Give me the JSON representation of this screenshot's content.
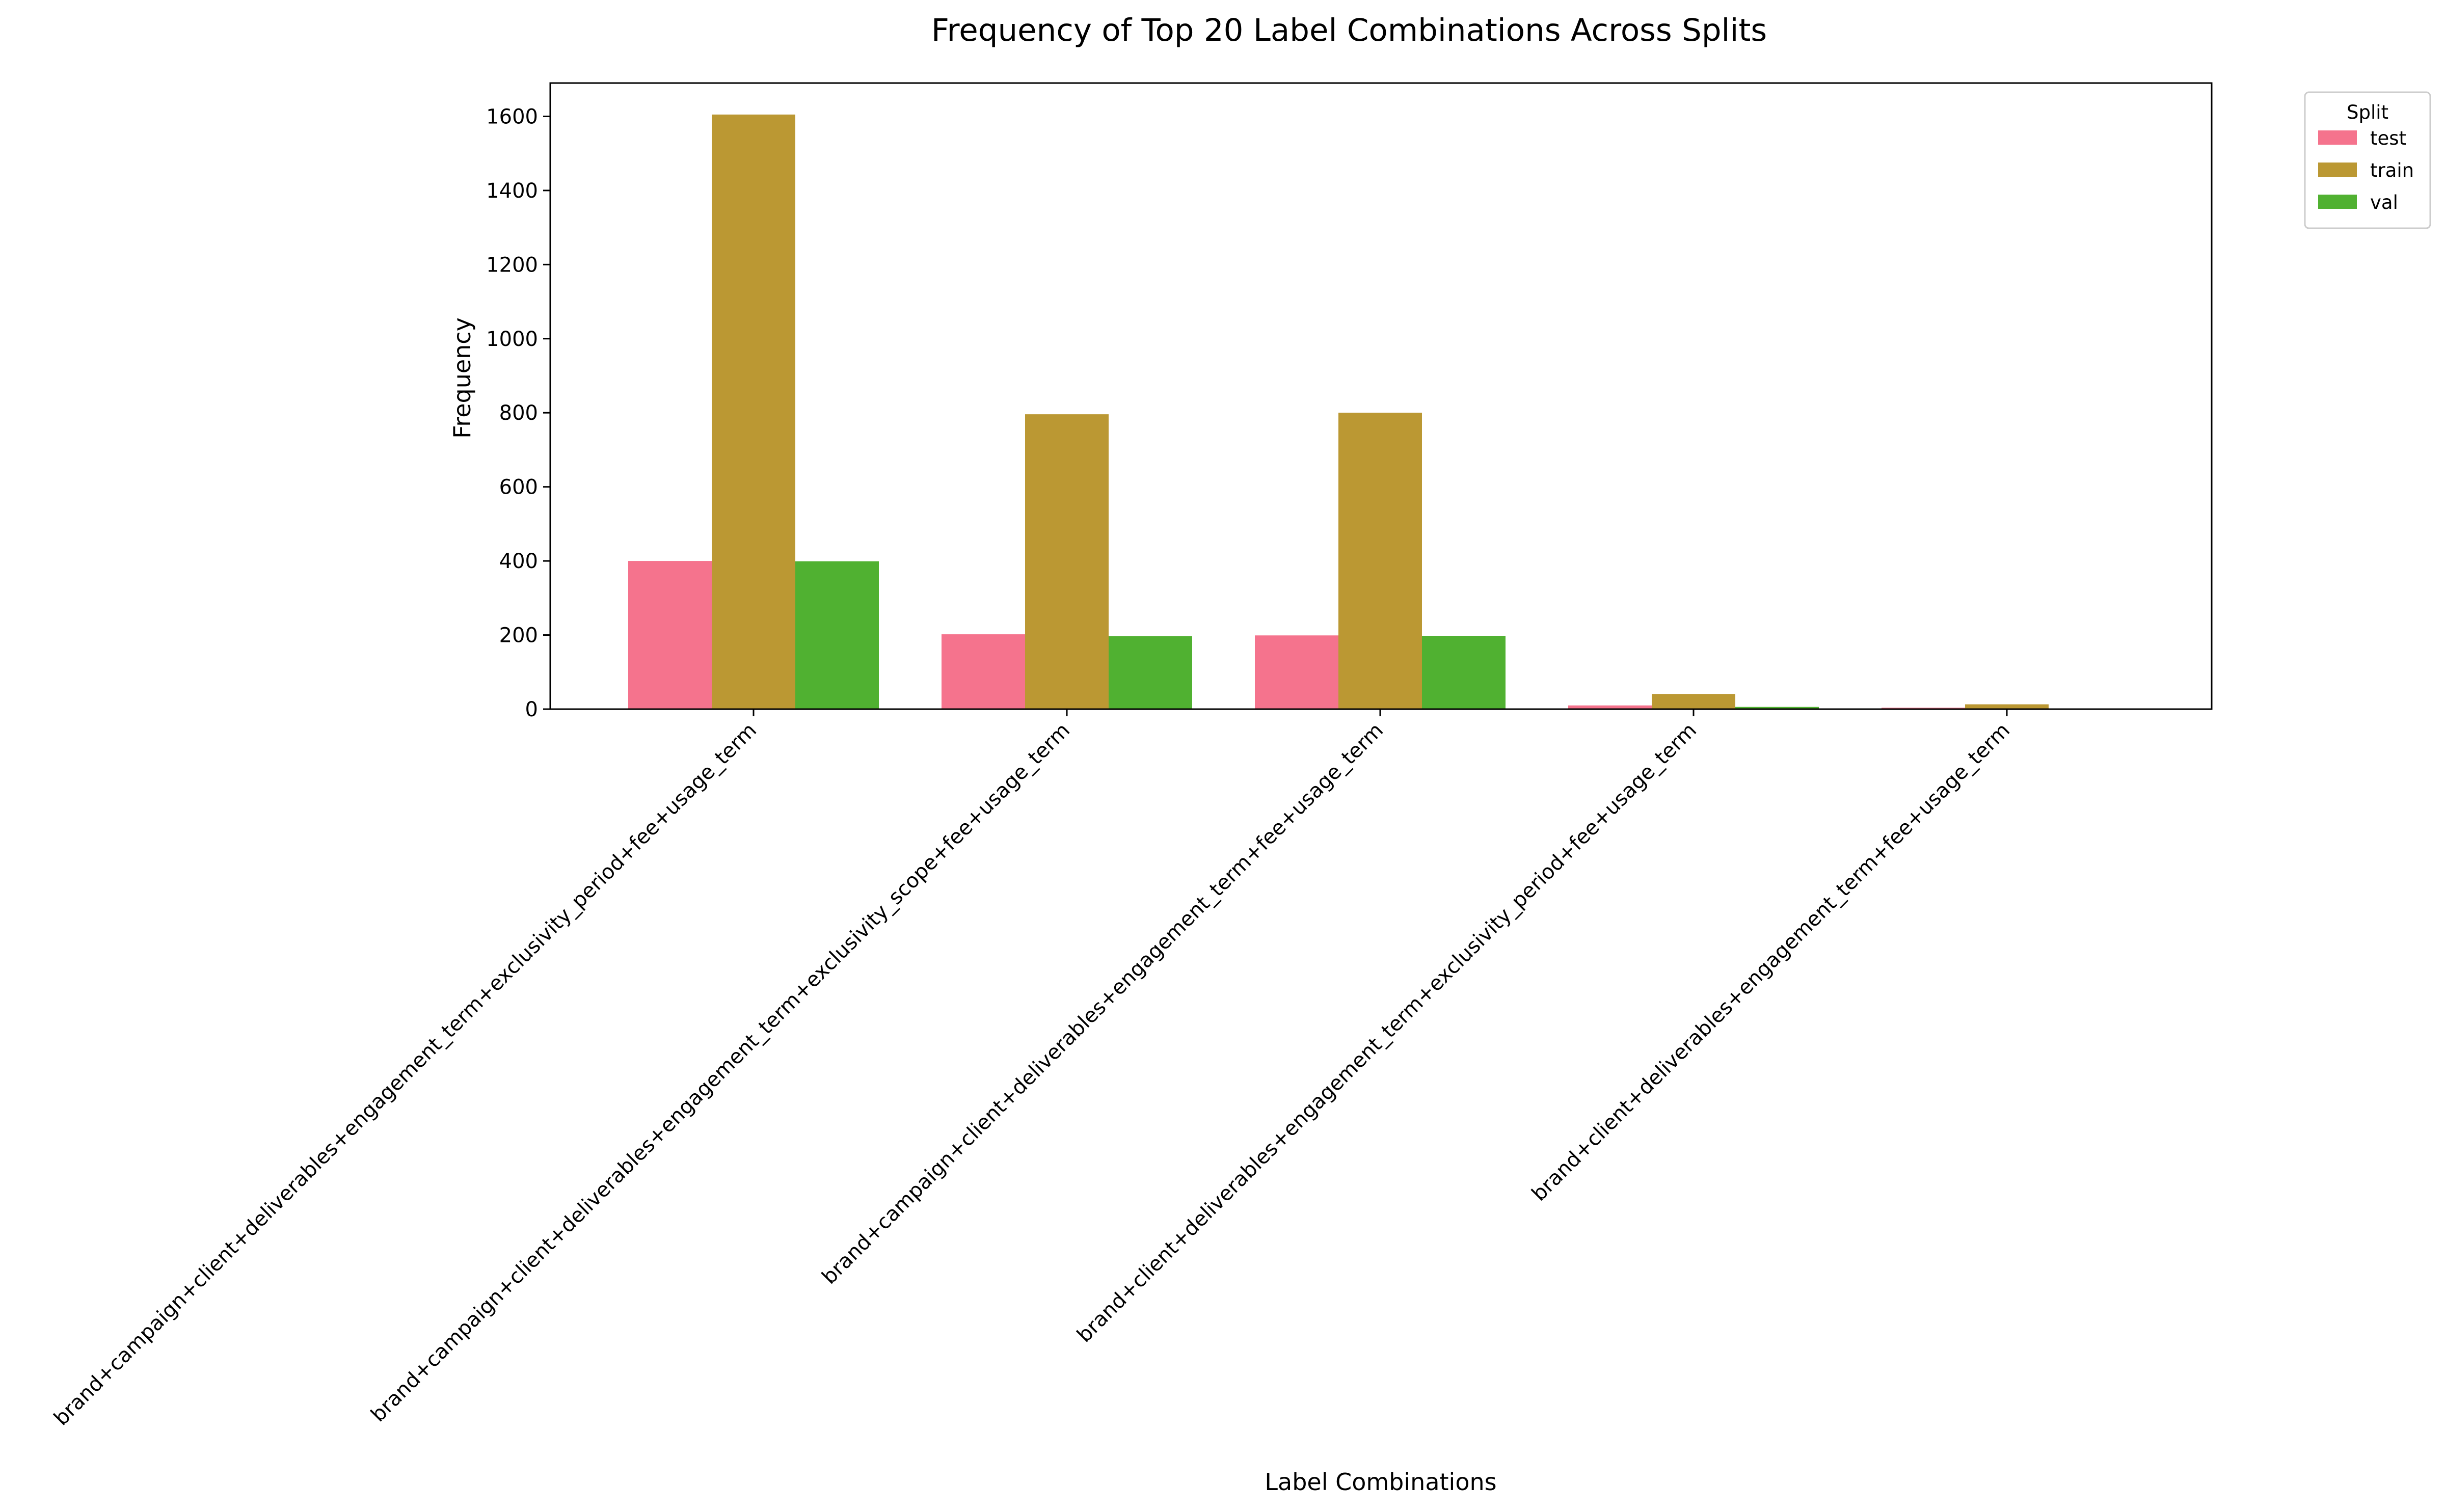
{
  "chart_data": {
    "type": "bar",
    "title": "Frequency of Top 20 Label Combinations Across Splits",
    "xlabel": "Label Combinations",
    "ylabel": "Frequency",
    "ylim": [
      0,
      1690
    ],
    "yticks": [
      0,
      200,
      400,
      600,
      800,
      1000,
      1200,
      1400,
      1600
    ],
    "grid": false,
    "legend": {
      "title": "Split",
      "placement": "outside top-right"
    },
    "categories": [
      "brand+campaign+client+deliverables+engagement_term+exclusivity_period+fee+usage_term",
      "brand+campaign+client+deliverables+engagement_term+exclusivity_scope+fee+usage_term",
      "brand+campaign+client+deliverables+engagement_term+fee+usage_term",
      "brand+client+deliverables+engagement_term+exclusivity_period+fee+usage_term",
      "brand+client+deliverables+engagement_term+fee+usage_term"
    ],
    "series": [
      {
        "name": "test",
        "color": "#f5738d",
        "values": [
          400,
          202,
          199,
          10,
          4
        ]
      },
      {
        "name": "train",
        "color": "#bb9833",
        "values": [
          1605,
          796,
          800,
          41,
          13
        ]
      },
      {
        "name": "val",
        "color": "#50b131",
        "values": [
          399,
          197,
          198,
          6,
          0
        ]
      }
    ]
  }
}
